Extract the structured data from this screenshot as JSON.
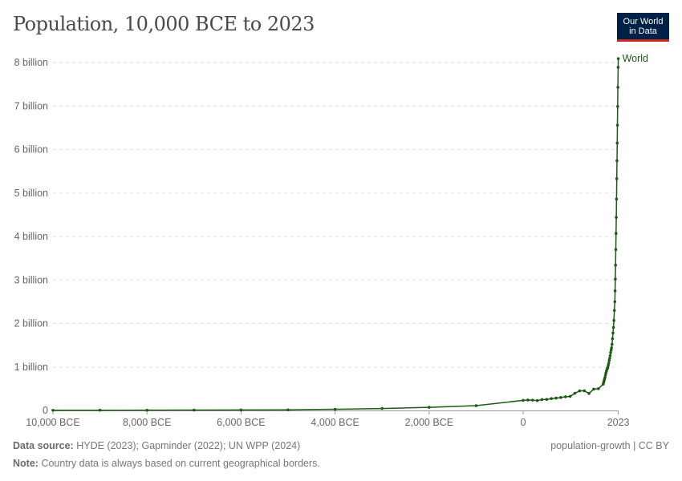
{
  "title": "Population, 10,000 BCE to 2023",
  "logo": {
    "line1": "Our World",
    "line2": "in Data"
  },
  "footer": {
    "source_label": "Data source:",
    "source": "HYDE (2023); Gapminder (2022); UN WPP (2024)",
    "note_label": "Note:",
    "note": "Country data is always based on current geographical borders.",
    "license": "population-growth | CC BY"
  },
  "chart_data": {
    "type": "line",
    "title": "Population, 10,000 BCE to 2023",
    "xlim": [
      -10000,
      2023
    ],
    "ylim": [
      0,
      8000000000
    ],
    "grid": true,
    "line_color": "#1d5a14",
    "x_ticks": [
      {
        "v": -10000,
        "label": "10,000 BCE"
      },
      {
        "v": -8000,
        "label": "8,000 BCE"
      },
      {
        "v": -6000,
        "label": "6,000 BCE"
      },
      {
        "v": -4000,
        "label": "4,000 BCE"
      },
      {
        "v": -2000,
        "label": "2,000 BCE"
      },
      {
        "v": 0,
        "label": "0"
      },
      {
        "v": 2023,
        "label": "2023"
      }
    ],
    "y_ticks": [
      {
        "v": 0,
        "label": "0"
      },
      {
        "v": 1000000000,
        "label": "1 billion"
      },
      {
        "v": 2000000000,
        "label": "2 billion"
      },
      {
        "v": 3000000000,
        "label": "3 billion"
      },
      {
        "v": 4000000000,
        "label": "4 billion"
      },
      {
        "v": 5000000000,
        "label": "5 billion"
      },
      {
        "v": 6000000000,
        "label": "6 billion"
      },
      {
        "v": 7000000000,
        "label": "7 billion"
      },
      {
        "v": 8000000000,
        "label": "8 billion"
      }
    ],
    "series": [
      {
        "name": "World",
        "x": [
          -10000,
          -9000,
          -8000,
          -7000,
          -6000,
          -5000,
          -4000,
          -3000,
          -2000,
          -1000,
          0,
          100,
          200,
          300,
          400,
          500,
          600,
          700,
          800,
          900,
          1000,
          1100,
          1200,
          1300,
          1400,
          1500,
          1600,
          1700,
          1710,
          1720,
          1730,
          1740,
          1750,
          1760,
          1770,
          1780,
          1790,
          1800,
          1810,
          1820,
          1830,
          1840,
          1850,
          1860,
          1870,
          1880,
          1890,
          1900,
          1910,
          1920,
          1930,
          1940,
          1950,
          1955,
          1960,
          1965,
          1970,
          1975,
          1980,
          1985,
          1990,
          1995,
          2000,
          2005,
          2010,
          2015,
          2020,
          2023
        ],
        "y": [
          4400000,
          5500000,
          7000000,
          8900000,
          11000000,
          14000000,
          27000000,
          45000000,
          72000000,
          110000000,
          232000000,
          240000000,
          237000000,
          227000000,
          251000000,
          254000000,
          273000000,
          284000000,
          298000000,
          315000000,
          323000000,
          396000000,
          450000000,
          453000000,
          390000000,
          490000000,
          500000000,
          603000000,
          640000000,
          680000000,
          720000000,
          760000000,
          810000000,
          860000000,
          900000000,
          940000000,
          965000000,
          985000000,
          1040000000,
          1090000000,
          1150000000,
          1200000000,
          1260000000,
          1330000000,
          1390000000,
          1440000000,
          1520000000,
          1650000000,
          1780000000,
          1910000000,
          2070000000,
          2300000000,
          2500000000,
          2750000000,
          3020000000,
          3340000000,
          3700000000,
          4070000000,
          4440000000,
          4860000000,
          5330000000,
          5740000000,
          6150000000,
          6560000000,
          6990000000,
          7430000000,
          7890000000,
          8090000000
        ]
      }
    ]
  }
}
